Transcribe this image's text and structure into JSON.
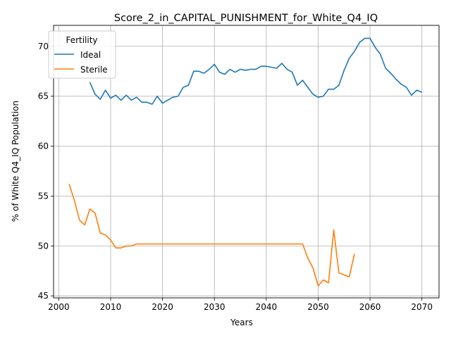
{
  "chart_data": {
    "type": "line",
    "title": "Score_2_in_CAPITAL_PUNISHMENT_for_White_Q4_IQ",
    "xlabel": "Years",
    "ylabel": "% of White Q4_IQ Population",
    "xlim": [
      1999,
      2073.3
    ],
    "ylim": [
      44.8,
      72.1
    ],
    "xticks": [
      2000,
      2010,
      2020,
      2030,
      2040,
      2050,
      2060,
      2070
    ],
    "yticks": [
      45,
      50,
      55,
      60,
      65,
      70
    ],
    "grid": true,
    "legend": {
      "title": "Fertility",
      "placement": "top-left"
    },
    "series": [
      {
        "name": "Ideal",
        "color": "#1f77b4",
        "x": [
          2006,
          2007,
          2008,
          2009,
          2010,
          2011,
          2012,
          2013,
          2014,
          2015,
          2016,
          2017,
          2018,
          2019,
          2020,
          2021,
          2022,
          2023,
          2024,
          2025,
          2026,
          2027,
          2028,
          2029,
          2030,
          2031,
          2032,
          2033,
          2034,
          2035,
          2036,
          2037,
          2038,
          2039,
          2040,
          2041,
          2042,
          2043,
          2044,
          2045,
          2046,
          2047,
          2048,
          2049,
          2050,
          2051,
          2052,
          2053,
          2054,
          2055,
          2056,
          2057,
          2058,
          2059,
          2060,
          2061,
          2062,
          2063,
          2064,
          2065,
          2066,
          2067,
          2068,
          2069,
          2070
        ],
        "y": [
          66.4,
          65.2,
          64.7,
          65.6,
          64.8,
          65.1,
          64.6,
          65.1,
          64.6,
          64.9,
          64.4,
          64.4,
          64.2,
          65.0,
          64.3,
          64.6,
          64.9,
          65.0,
          65.9,
          66.1,
          67.5,
          67.5,
          67.3,
          67.7,
          68.2,
          67.4,
          67.2,
          67.7,
          67.4,
          67.7,
          67.6,
          67.7,
          67.7,
          68.0,
          68.0,
          67.9,
          67.8,
          68.3,
          67.7,
          67.4,
          66.1,
          66.6,
          65.9,
          65.2,
          64.9,
          65.0,
          65.7,
          65.7,
          66.1,
          67.6,
          68.8,
          69.5,
          70.4,
          70.8,
          70.8,
          69.9,
          69.2,
          67.8,
          67.3,
          66.7,
          66.2,
          65.9,
          65.1,
          65.6,
          65.4
        ]
      },
      {
        "name": "Sterile",
        "color": "#ff7f0e",
        "x": [
          2002,
          2003,
          2004,
          2005,
          2006,
          2007,
          2008,
          2009,
          2010,
          2011,
          2012,
          2013,
          2014,
          2015,
          2016,
          2017,
          2018,
          2019,
          2020,
          2021,
          2022,
          2023,
          2024,
          2025,
          2026,
          2027,
          2028,
          2029,
          2030,
          2031,
          2032,
          2033,
          2034,
          2035,
          2036,
          2037,
          2038,
          2039,
          2040,
          2041,
          2042,
          2043,
          2044,
          2045,
          2046,
          2047,
          2048,
          2049,
          2050,
          2051,
          2052,
          2053,
          2054,
          2055,
          2056,
          2057
        ],
        "y": [
          56.2,
          54.6,
          52.6,
          52.1,
          53.7,
          53.3,
          51.3,
          51.1,
          50.6,
          49.8,
          49.8,
          50.0,
          50.0,
          50.2,
          50.2,
          50.2,
          50.2,
          50.2,
          50.2,
          50.2,
          50.2,
          50.2,
          50.2,
          50.2,
          50.2,
          50.2,
          50.2,
          50.2,
          50.2,
          50.2,
          50.2,
          50.2,
          50.2,
          50.2,
          50.2,
          50.2,
          50.2,
          50.2,
          50.2,
          50.2,
          50.2,
          50.2,
          50.2,
          50.2,
          50.2,
          50.2,
          48.8,
          47.8,
          46.0,
          46.6,
          46.3,
          51.6,
          47.3,
          47.1,
          46.9,
          49.2
        ]
      }
    ]
  }
}
